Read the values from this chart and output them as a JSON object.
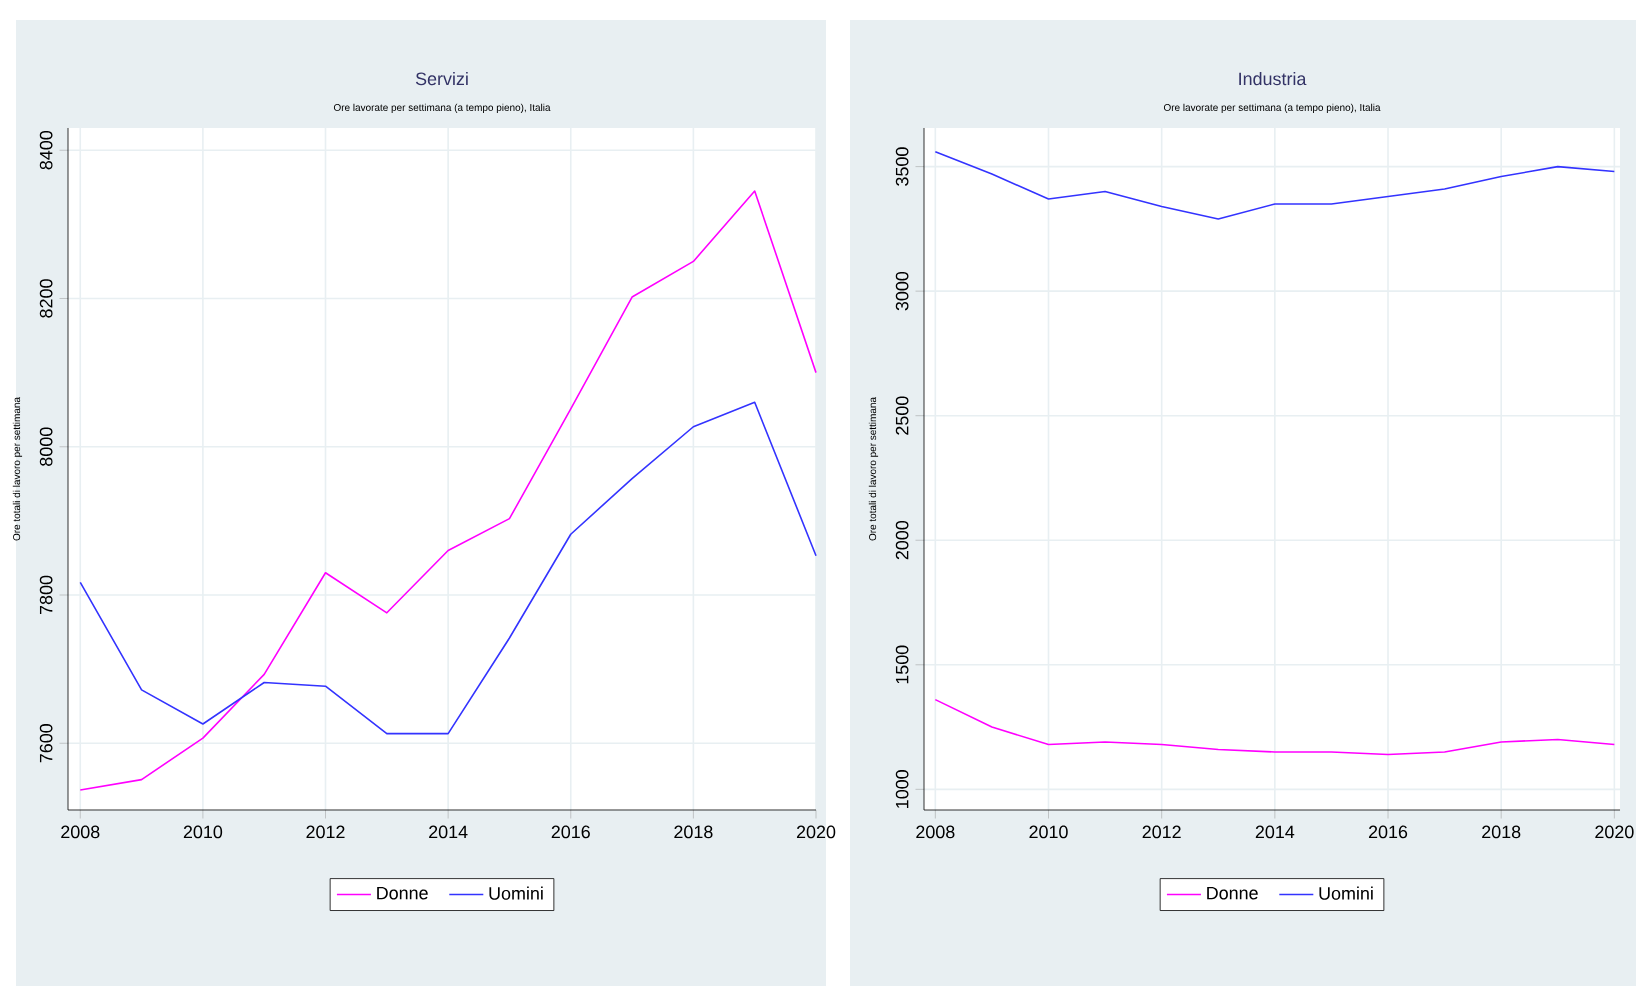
{
  "chart_data": [
    {
      "type": "line",
      "title": "Servizi",
      "subtitle": "Ore lavorate per settimana (a tempo pieno), Italia",
      "ylabel": "Ore totali di lavoro per settimana",
      "x": [
        2008,
        2009,
        2010,
        2011,
        2012,
        2013,
        2014,
        2015,
        2016,
        2017,
        2018,
        2019,
        2020
      ],
      "series": [
        {
          "name": "Donne",
          "color": "#ff00ff",
          "values": [
            7537,
            7551,
            7607,
            7693,
            7830,
            7776,
            7860,
            7903,
            8051,
            8202,
            8250,
            8345,
            8100
          ]
        },
        {
          "name": "Uomini",
          "color": "#3333ff",
          "values": [
            7817,
            7672,
            7626,
            7682,
            7677,
            7613,
            7613,
            7742,
            7882,
            7957,
            8027,
            8060,
            7853
          ]
        }
      ],
      "xlim": [
        2007.8,
        2020
      ],
      "ylim": [
        7510,
        8430
      ],
      "xticks": [
        2008,
        2010,
        2012,
        2014,
        2016,
        2018,
        2020
      ],
      "yticks": [
        7600,
        7800,
        8000,
        8200,
        8400
      ],
      "grid": true,
      "legend": "bottom"
    },
    {
      "type": "line",
      "title": "Industria",
      "subtitle": "Ore lavorate per settimana (a tempo pieno), Italia",
      "ylabel": "Ore totali di lavoro per settimana",
      "x": [
        2008,
        2009,
        2010,
        2011,
        2012,
        2013,
        2014,
        2015,
        2016,
        2017,
        2018,
        2019,
        2020
      ],
      "series": [
        {
          "name": "Donne",
          "color": "#ff00ff",
          "values": [
            1360,
            1250,
            1180,
            1190,
            1180,
            1160,
            1150,
            1150,
            1140,
            1150,
            1190,
            1200,
            1180
          ]
        },
        {
          "name": "Uomini",
          "color": "#3333ff",
          "values": [
            3560,
            3470,
            3370,
            3400,
            3340,
            3290,
            3350,
            3350,
            3380,
            3410,
            3460,
            3500,
            3480
          ]
        }
      ],
      "xlim": [
        2007.8,
        2020.1
      ],
      "ylim": [
        917,
        3655
      ],
      "xticks": [
        2008,
        2010,
        2012,
        2014,
        2016,
        2018,
        2020
      ],
      "yticks": [
        1000,
        1500,
        2000,
        2500,
        3000,
        3500
      ],
      "grid": true,
      "legend": "bottom"
    }
  ]
}
